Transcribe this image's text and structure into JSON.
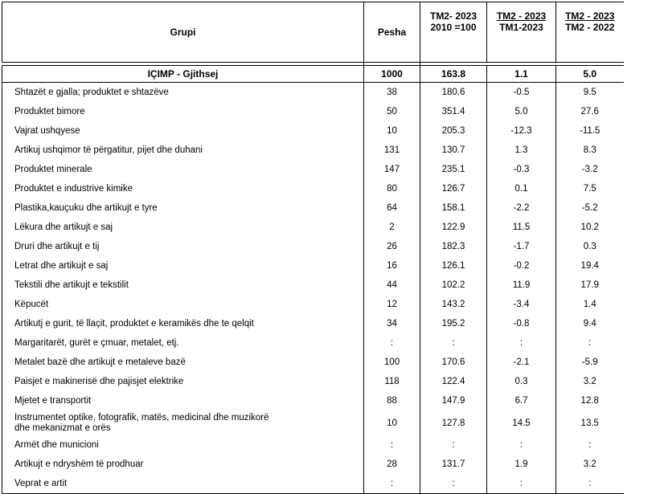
{
  "header": {
    "group": "Grupi",
    "weight": "Pesha",
    "index_line1": "TM2- 2023",
    "index_line2": "2010 =100",
    "monthly_line1": "TM2 - 2023",
    "monthly_line2": "TM1-2023",
    "yearly_line1": "TM2 - 2023",
    "yearly_line2": "TM2 - 2022"
  },
  "total": {
    "group": "IÇIMP - Gjithsej",
    "weight": "1000",
    "index": "163.8",
    "monthly": "1.1",
    "yearly": "5.0"
  },
  "rows": [
    {
      "group": "Shtazët e gjalla; produktet e shtazëve",
      "weight": "38",
      "index": "180.6",
      "monthly": "-0.5",
      "yearly": "9.5"
    },
    {
      "group": "Produktet bimore",
      "weight": "50",
      "index": "351.4",
      "monthly": "5.0",
      "yearly": "27.6"
    },
    {
      "group": "Vajrat ushqyese",
      "weight": "10",
      "index": "205.3",
      "monthly": "-12.3",
      "yearly": "-11.5"
    },
    {
      "group": "Artikuj ushqimor të përgatitur, pijet dhe duhani",
      "weight": "131",
      "index": "130.7",
      "monthly": "1.3",
      "yearly": "8.3"
    },
    {
      "group": "Produktet minerale",
      "weight": "147",
      "index": "235.1",
      "monthly": "-0.3",
      "yearly": "-3.2"
    },
    {
      "group": "Produktet e industrive kimike",
      "weight": "80",
      "index": "126.7",
      "monthly": "0.1",
      "yearly": "7.5"
    },
    {
      "group": "Plastika,kauçuku dhe artikujt e tyre",
      "weight": "64",
      "index": "158.1",
      "monthly": "-2.2",
      "yearly": "-5.2"
    },
    {
      "group": "Lëkura dhe artikujt e saj",
      "weight": "2",
      "index": "122.9",
      "monthly": "11.5",
      "yearly": "10.2"
    },
    {
      "group": "Druri dhe artikujt e tij",
      "weight": "26",
      "index": "182.3",
      "monthly": "-1.7",
      "yearly": "0.3"
    },
    {
      "group": "Letrat dhe artikujt e saj",
      "weight": "16",
      "index": "126.1",
      "monthly": "-0.2",
      "yearly": "19.4"
    },
    {
      "group": "Tekstili dhe artikujt e tekstilit",
      "weight": "44",
      "index": "102.2",
      "monthly": "11.9",
      "yearly": "17.9"
    },
    {
      "group": "Këpucët",
      "weight": "12",
      "index": "143.2",
      "monthly": "-3.4",
      "yearly": "1.4"
    },
    {
      "group": "Artikutj e gurit, të llaçit, produktet e keramikës dhe te qelqit",
      "weight": "34",
      "index": "195.2",
      "monthly": "-0.8",
      "yearly": "9.4"
    },
    {
      "group": "Margaritarët, gurët e çmuar, metalet, etj.",
      "weight": ":",
      "index": ":",
      "monthly": ":",
      "yearly": ":"
    },
    {
      "group": "Metalet bazë dhe artikujt e metaleve bazë",
      "weight": "100",
      "index": "170.6",
      "monthly": "-2.1",
      "yearly": "-5.9"
    },
    {
      "group": "Paisjet e makinerisë dhe pajisjet elektrike",
      "weight": "118",
      "index": "122.4",
      "monthly": "0.3",
      "yearly": "3.2"
    },
    {
      "group": "Mjetet e transportit",
      "weight": "88",
      "index": "147.9",
      "monthly": "6.7",
      "yearly": "12.8"
    },
    {
      "group_line1": "Instrumentet optike, fotografik, matës, medicinal dhe muzikorë",
      "group_line2": "dhe mekanizmat e orës",
      "weight": "10",
      "index": "127.8",
      "monthly": "14.5",
      "yearly": "13.5"
    },
    {
      "group": "Armët dhe municioni",
      "weight": ":",
      "index": ":",
      "monthly": ":",
      "yearly": ":"
    },
    {
      "group": "Artikujt e ndryshëm të prodhuar",
      "weight": "28",
      "index": "131.7",
      "monthly": "1.9",
      "yearly": "3.2"
    },
    {
      "group": "Veprat e artit",
      "weight": ":",
      "index": ":",
      "monthly": ":",
      "yearly": ":"
    }
  ]
}
